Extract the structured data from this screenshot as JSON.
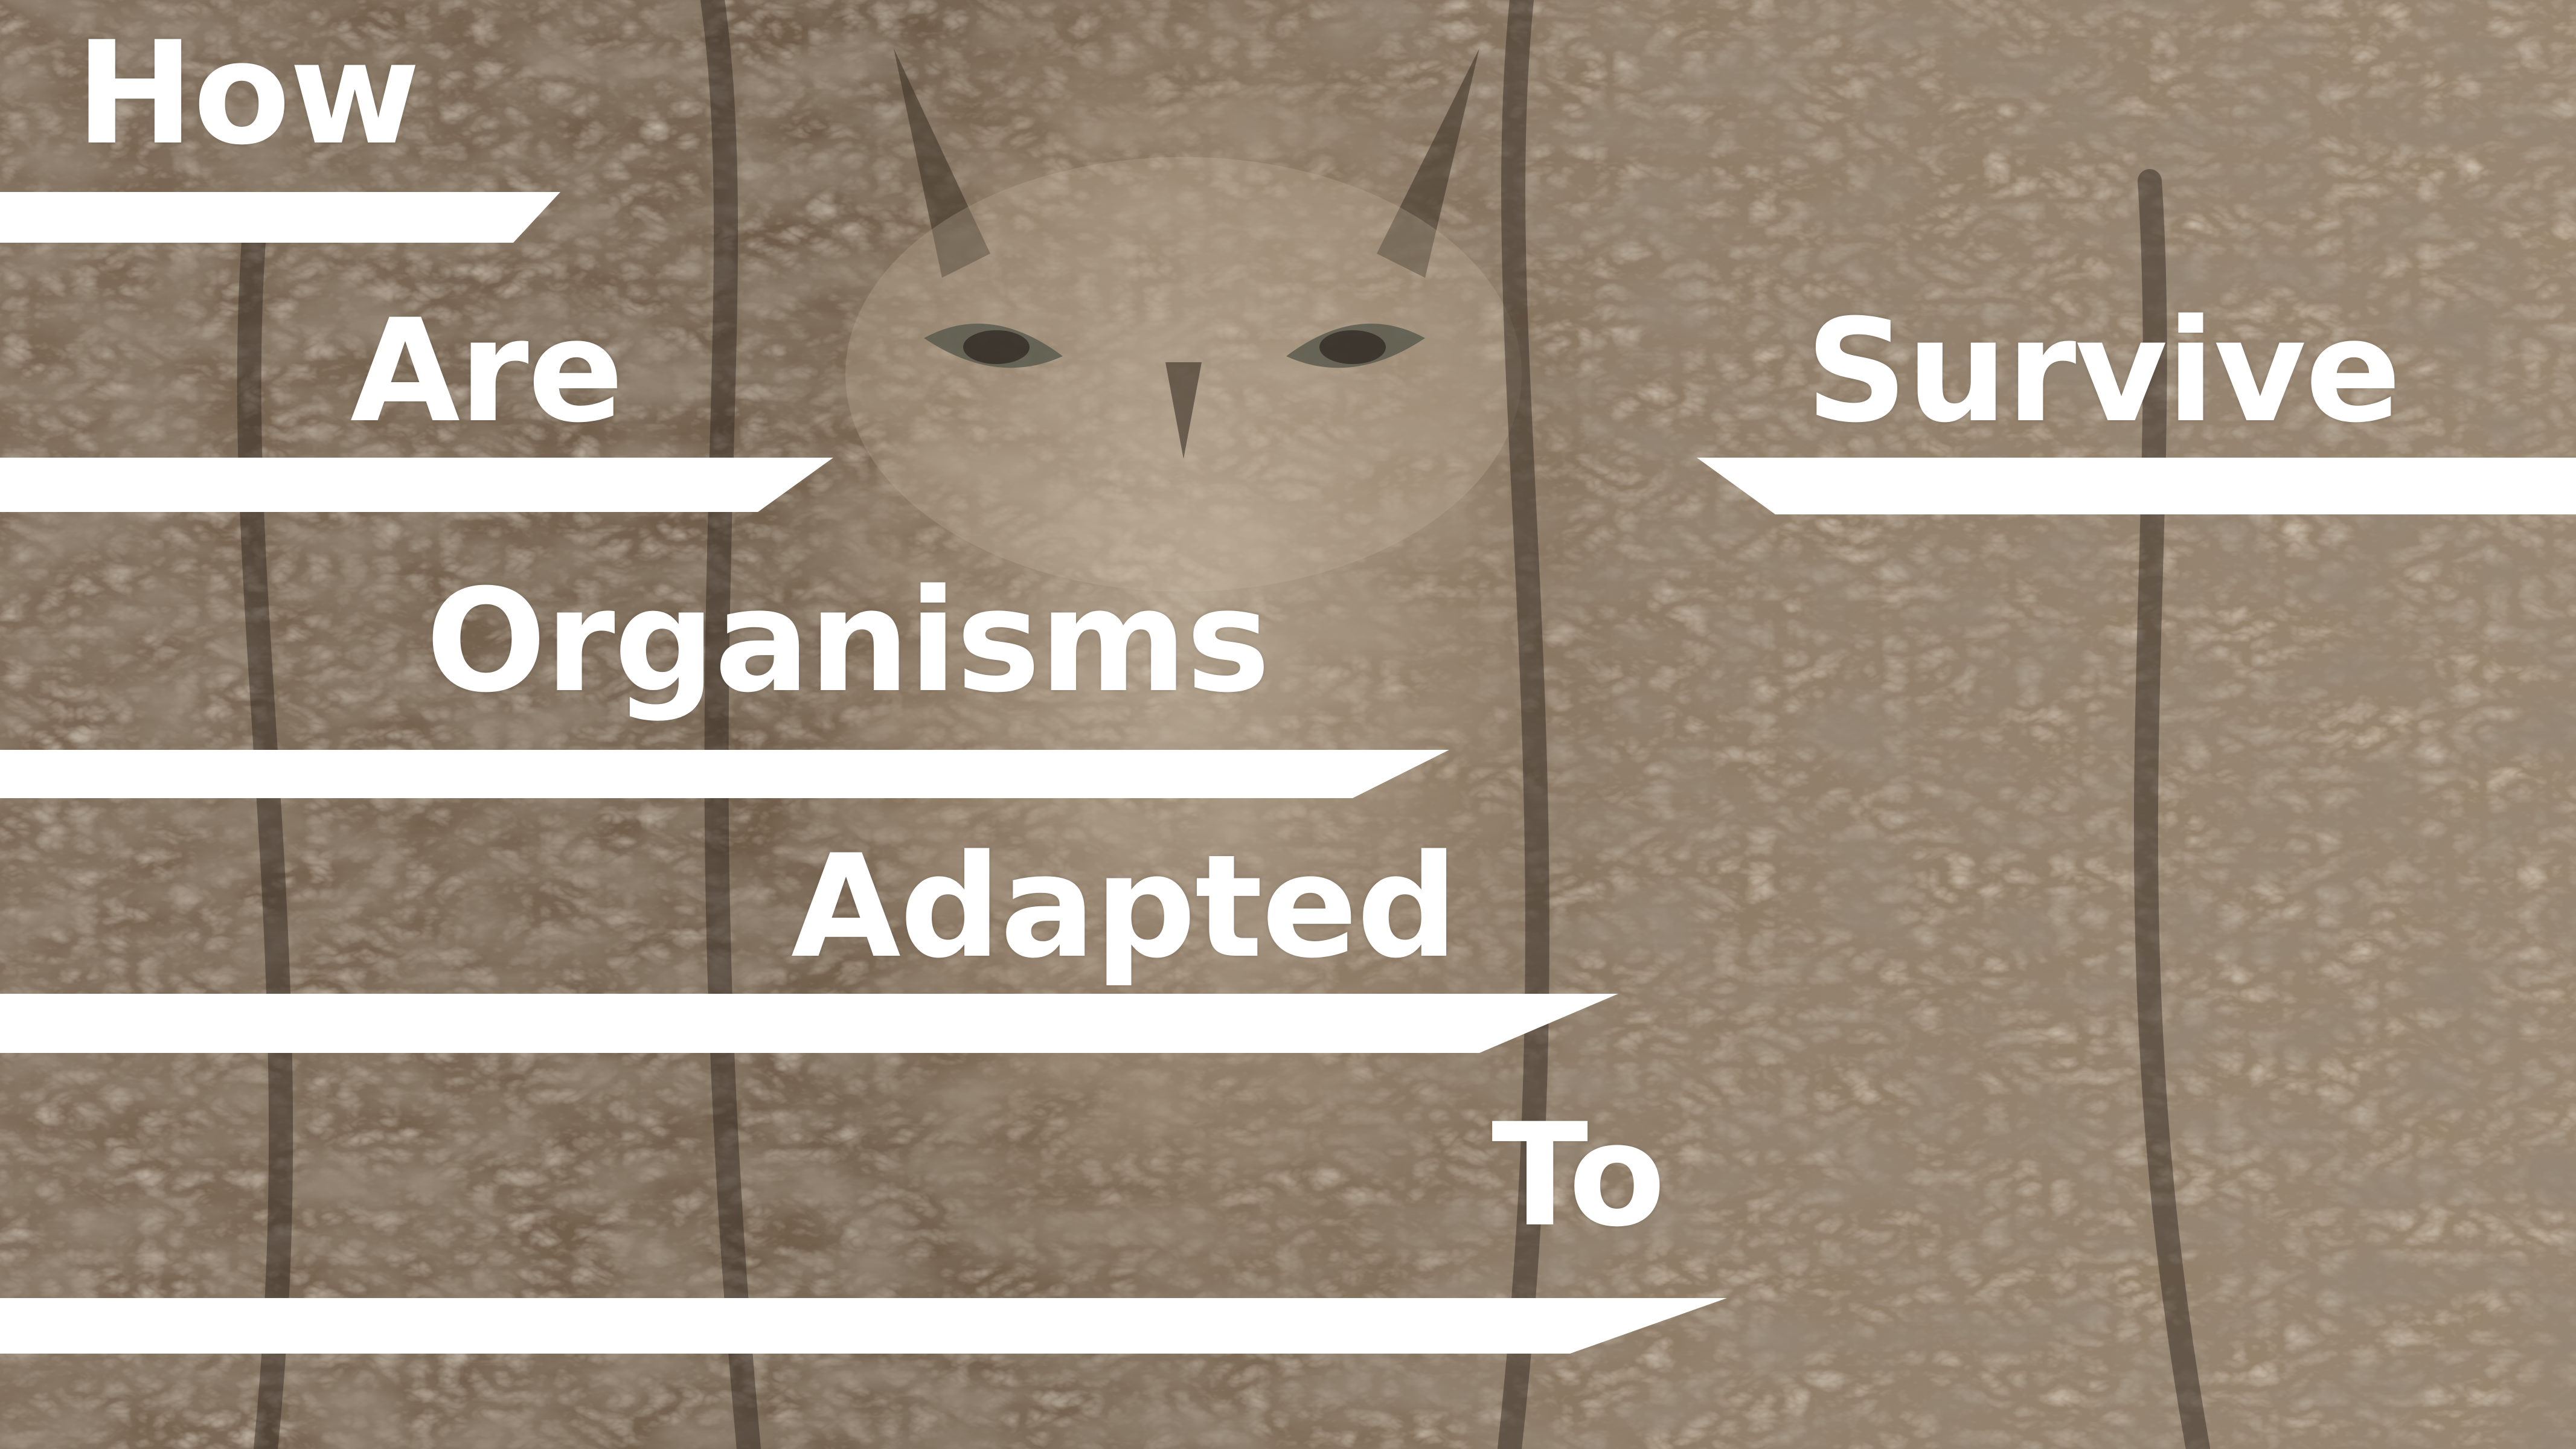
{
  "title_words": {
    "how": "How",
    "are": "Are",
    "organisms": "Organisms",
    "adapted": "Adapted",
    "to": "To",
    "survive": "Survive"
  },
  "colors": {
    "text": "#ffffff",
    "bars": "#ffffff",
    "bark_dark": "#3a2f25",
    "bark_mid": "#8a7560",
    "bark_light": "#cdbba3"
  },
  "background_subject": "screech-owl-camouflaged-on-tree-bark"
}
